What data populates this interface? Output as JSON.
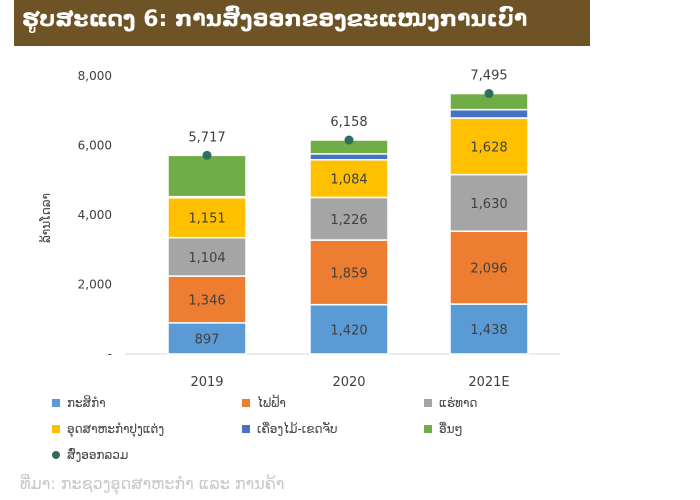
{
  "title": "ຮູບສະແດງ 6: ການສົ່ງອອກຂອງຂະແໜງການເບົາ",
  "chart_data": {
    "type": "bar",
    "stacked": true,
    "categories": [
      "2019",
      "2020",
      "2021E"
    ],
    "ylabel": "ລ້ານໂດລາ",
    "ylim": [
      0,
      8000
    ],
    "yticks": [
      0,
      2000,
      4000,
      6000,
      8000
    ],
    "ytick_labels": [
      "-",
      "2,000",
      "4,000",
      "6,000",
      "8,000"
    ],
    "series": [
      {
        "name": "ກະສິກຳ",
        "color": "#5b9bd5",
        "values": [
          897,
          1420,
          1438
        ],
        "labels": [
          "897",
          "1,420",
          "1,438"
        ]
      },
      {
        "name": "ໄຟຟ້າ",
        "color": "#ed7d31",
        "values": [
          1346,
          1859,
          2096
        ],
        "labels": [
          "1,346",
          "1,859",
          "2,096"
        ]
      },
      {
        "name": "ແຮ່ທາດ",
        "color": "#a5a5a5",
        "values": [
          1104,
          1226,
          1630
        ],
        "labels": [
          "1,104",
          "1,226",
          "1,630"
        ]
      },
      {
        "name": "ອຸດສາຫະກຳປຸງແຕ່ງ",
        "color": "#ffc000",
        "values": [
          1151,
          1084,
          1628
        ],
        "labels": [
          "1,151",
          "1,084",
          "1,628"
        ]
      },
      {
        "name": "ເຄື່ອງໄມ້-ເຂດຈັບ",
        "color": "#4472c4",
        "values": [
          30,
          170,
          240
        ],
        "labels": []
      },
      {
        "name": "ອື່ນໆ",
        "color": "#70ad47",
        "values": [
          1189,
          399,
          463
        ],
        "labels": []
      }
    ],
    "totals": {
      "name": "ສົ່ງອອກລວມ",
      "color": "#2e6e5a",
      "values": [
        5717,
        6158,
        7495
      ],
      "labels": [
        "5,717",
        "6,158",
        "7,495"
      ]
    }
  },
  "footer_text": "ທີ່ມາ: ກະຊວງອຸດສາຫະກຳ ແລະ ການຄ້າ"
}
